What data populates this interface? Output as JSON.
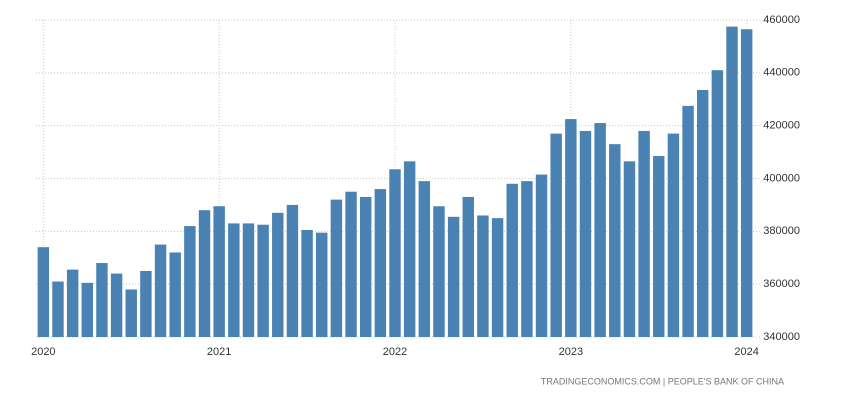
{
  "chart_data": {
    "type": "bar",
    "categories": [
      "2020",
      null,
      null,
      null,
      null,
      null,
      null,
      null,
      null,
      null,
      null,
      null,
      "2021",
      null,
      null,
      null,
      null,
      null,
      null,
      null,
      null,
      null,
      null,
      null,
      "2022",
      null,
      null,
      null,
      null,
      null,
      null,
      null,
      null,
      null,
      null,
      null,
      "2023",
      null,
      null,
      null,
      null,
      null,
      null,
      null,
      null,
      null,
      null,
      null,
      "2024"
    ],
    "values": [
      374000,
      361000,
      365500,
      360500,
      368000,
      364000,
      358000,
      365000,
      375000,
      372000,
      382000,
      388000,
      389500,
      383000,
      383000,
      382500,
      387000,
      390000,
      380500,
      379500,
      392000,
      395000,
      393000,
      396000,
      403500,
      406500,
      399000,
      389500,
      385500,
      393000,
      386000,
      385000,
      398000,
      399000,
      401500,
      417000,
      422500,
      418000,
      421000,
      413000,
      406500,
      418000,
      408500,
      417000,
      427500,
      433500,
      441000,
      457500,
      456500
    ],
    "color": "#4a82b4",
    "ylim": [
      340000,
      460000
    ],
    "yticks": [
      340000,
      360000,
      380000,
      400000,
      420000,
      440000,
      460000
    ],
    "grid": true,
    "source": "TRADINGECONOMICS.COM | PEOPLE'S BANK OF CHINA"
  }
}
